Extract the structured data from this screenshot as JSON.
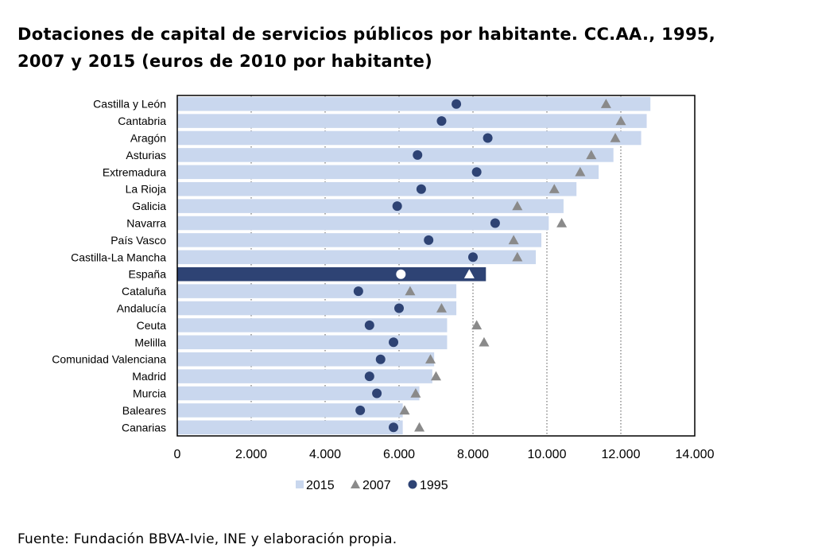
{
  "title_line1": "Dotaciones de capital de servicios públicos por habitante. CC.AA., 1995,",
  "title_line2": "2007 y 2015 (euros de 2010 por habitante)",
  "source": "Fuente: Fundación BBVA-Ivie, INE y elaboración propia.",
  "colors": {
    "bar_2015": "#c9d7ee",
    "bar_highlight": "#2e4374",
    "marker_2007": "#8a8a8a",
    "marker_1995": "#2e4374",
    "highlight_marker": "#ffffff"
  },
  "chart_data": {
    "type": "bar",
    "orientation": "horizontal",
    "categories": [
      "Castilla y León",
      "Cantabria",
      "Aragón",
      "Asturias",
      "Extremadura",
      "La Rioja",
      "Galicia",
      "Navarra",
      "País Vasco",
      "Castilla-La Mancha",
      "España",
      "Cataluña",
      "Andalucía",
      "Ceuta",
      "Melilla",
      "Comunidad Valenciana",
      "Madrid",
      "Murcia",
      "Baleares",
      "Canarias"
    ],
    "highlight": "España",
    "series": [
      {
        "name": "2015",
        "kind": "bar",
        "values": [
          12800,
          12700,
          12550,
          11800,
          11400,
          10800,
          10450,
          10050,
          9850,
          9700,
          8350,
          7550,
          7550,
          7300,
          7300,
          6950,
          6900,
          6550,
          6100,
          6100
        ]
      },
      {
        "name": "2007",
        "kind": "triangle",
        "values": [
          11600,
          12000,
          11850,
          11200,
          10900,
          10200,
          9200,
          10400,
          9100,
          9200,
          7900,
          6300,
          7150,
          8100,
          8300,
          6850,
          7000,
          6450,
          6150,
          6550
        ]
      },
      {
        "name": "1995",
        "kind": "circle",
        "values": [
          7550,
          7150,
          8400,
          6500,
          8100,
          6600,
          5950,
          8600,
          6800,
          8000,
          6050,
          4900,
          6000,
          5200,
          5850,
          5500,
          5200,
          5400,
          4950,
          5850
        ]
      }
    ],
    "xlim": [
      0,
      14000
    ],
    "x_ticks": [
      "0",
      "2.000",
      "4.000",
      "6.000",
      "8.000",
      "10.000",
      "12.000",
      "14.000"
    ],
    "x_tick_values": [
      0,
      2000,
      4000,
      6000,
      8000,
      10000,
      12000,
      14000
    ],
    "gridlines": "vertical dotted",
    "legend": {
      "position": "bottom",
      "entries": [
        "2015",
        "2007",
        "1995"
      ]
    }
  }
}
